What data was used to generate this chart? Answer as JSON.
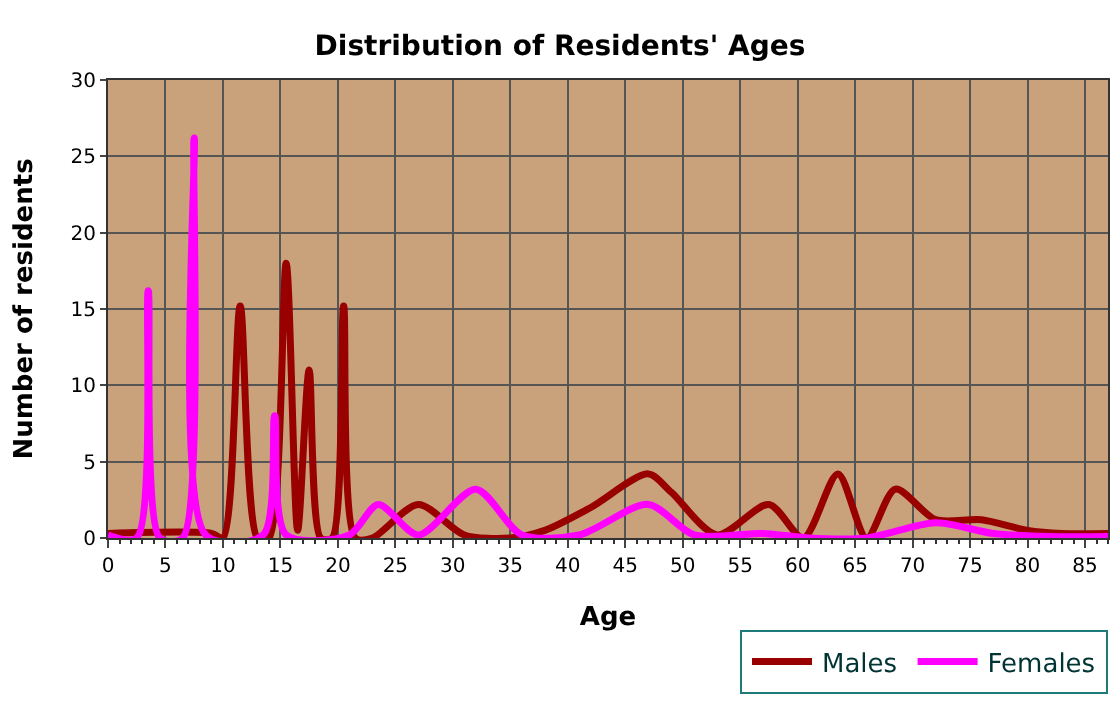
{
  "chart_data": {
    "type": "line",
    "title": "Distribution of Residents' Ages",
    "xlabel": "Age",
    "ylabel": "Number of residents",
    "xlim": [
      0,
      87
    ],
    "xticks": [
      0,
      5,
      10,
      15,
      20,
      25,
      30,
      35,
      40,
      45,
      50,
      55,
      60,
      65,
      70,
      75,
      80,
      85
    ],
    "ylim": [
      0,
      30
    ],
    "yticks": [
      0,
      5,
      10,
      15,
      20,
      25,
      30
    ],
    "grid": true,
    "legend": "bottom right",
    "marker": "none",
    "line_style": "solid",
    "series": [
      {
        "name": "Males",
        "color": "#990000",
        "x": [
          0,
          9,
          10,
          11.5,
          13,
          14,
          15.5,
          16.5,
          17.5,
          18.5,
          19.5,
          20.5,
          21.5,
          23,
          27,
          31,
          35,
          38,
          42,
          47,
          49,
          53,
          57.5,
          60.5,
          63.5,
          66,
          68.5,
          72,
          76,
          80,
          83,
          87
        ],
        "values": [
          0.3,
          0.3,
          0,
          15.2,
          0,
          0,
          18,
          0.5,
          11,
          0,
          0,
          15.2,
          0,
          0,
          2.2,
          0.2,
          0,
          0.5,
          2,
          4.2,
          3,
          0.2,
          2.2,
          0,
          4.2,
          0,
          3.2,
          1.2,
          1.2,
          0.5,
          0.3,
          0.3
        ]
      },
      {
        "name": "Females",
        "color": "#ff00ff",
        "x": [
          0,
          2.5,
          3.5,
          4.5,
          6.5,
          7.5,
          8.5,
          13.5,
          14.5,
          15.5,
          21,
          23.5,
          27,
          32,
          36,
          41,
          47,
          51,
          57,
          61,
          66,
          72,
          77,
          82,
          87
        ],
        "values": [
          0.2,
          0,
          16.2,
          0,
          0,
          26.2,
          0.2,
          0.2,
          8,
          0.2,
          0.2,
          2.2,
          0.2,
          3.2,
          0.2,
          0.2,
          2.2,
          0.2,
          0.3,
          0,
          0,
          1,
          0.3,
          0.1,
          0.1
        ]
      }
    ]
  }
}
